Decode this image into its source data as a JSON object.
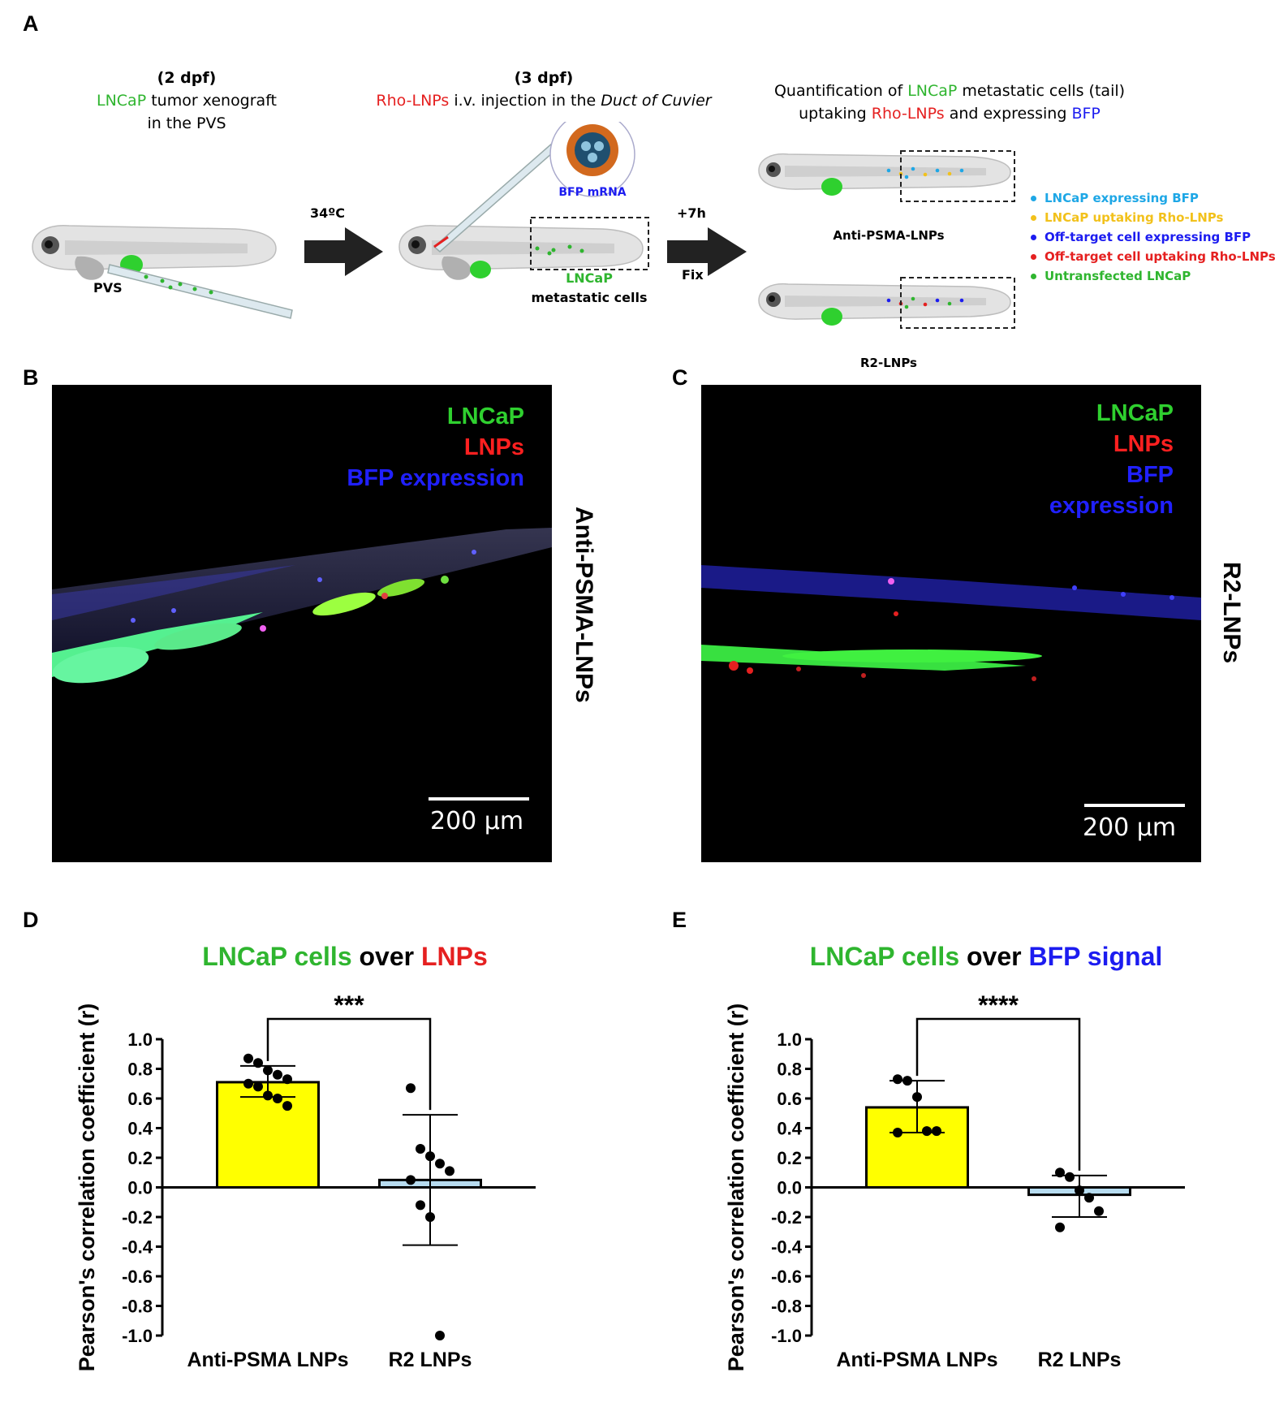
{
  "panel_letters": {
    "a": "A",
    "b": "B",
    "c": "C",
    "d": "D",
    "e": "E"
  },
  "schematic": {
    "stage1": {
      "line1": "(2 dpf)",
      "green": "LNCaP",
      "line2_rest": " tumor xenograft",
      "line3": "in the PVS",
      "pvs": "PVS"
    },
    "arrow1": "34ºC",
    "stage2": {
      "line1": "(3 dpf)",
      "red": "Rho-LNPs",
      "line2_mid": " i.v. injection  in the ",
      "italic": "Duct of Cuvier",
      "mrna": "BFP mRNA",
      "cells_green": "LNCaP",
      "cells": "metastatic cells"
    },
    "arrow2": {
      "top": "+7h",
      "bottom": "Fix"
    },
    "stage3": {
      "t1": "Quantification of ",
      "t_green": "LNCaP",
      "t2": " metastatic cells (tail)",
      "t3": "uptaking ",
      "t_red": "Rho-LNPs",
      "t4": " and expressing ",
      "t_blue": "BFP",
      "fish_top": "Anti-PSMA-LNPs",
      "fish_bottom": "R2-LNPs"
    },
    "legend": [
      {
        "label": "LNCaP expressing BFP",
        "color": "#1ea7e6"
      },
      {
        "label": "LNCaP uptaking Rho-LNPs",
        "color": "#f2c11b"
      },
      {
        "label": "Off-target cell expressing BFP",
        "color": "#1c1cf0"
      },
      {
        "label": "Off-target cell uptaking Rho-LNPs",
        "color": "#e52020"
      },
      {
        "label": "Untransfected LNCaP",
        "color": "#2fb52f"
      }
    ]
  },
  "micro_b": {
    "lnc": "LNCaP",
    "lnp": "LNPs",
    "bfp": "BFP expression",
    "scale": "200 µm",
    "side": "Anti-PSMA-LNPs"
  },
  "micro_c": {
    "lnc": "LNCaP",
    "lnp": "LNPs",
    "bfp1": "BFP",
    "bfp2": "expression",
    "scale": "200 µm",
    "side": "R2-LNPs"
  },
  "chart_d_title": {
    "green": "LNCaP cells",
    "mid": " over ",
    "colored": "LNPs",
    "colored_color": "#e52020"
  },
  "chart_e_title": {
    "green": "LNCaP cells",
    "mid": " over ",
    "colored": "BFP signal",
    "colored_color": "#1c1cf0"
  },
  "chart_data": [
    {
      "type": "bar",
      "title": "LNCaP cells over LNPs",
      "ylabel": "Pearson's correlation coefficient (r)",
      "categories": [
        "Anti-PSMA LNPs",
        "R2 LNPs"
      ],
      "values": [
        0.71,
        0.05
      ],
      "error_low": [
        0.61,
        -0.39
      ],
      "error_high": [
        0.82,
        0.49
      ],
      "bar_colors": [
        "#ffff00",
        "#b7dcf0"
      ],
      "points": [
        [
          0.87,
          0.84,
          0.79,
          0.76,
          0.73,
          0.7,
          0.68,
          0.62,
          0.6,
          0.55
        ],
        [
          0.67,
          0.26,
          0.21,
          0.16,
          0.11,
          0.05,
          -0.12,
          -0.2,
          -1.0
        ]
      ],
      "ylim": [
        -1.0,
        1.0
      ],
      "yticks": [
        "1.0",
        "0.8",
        "0.6",
        "0.4",
        "0.2",
        "0.0",
        "-0.2",
        "-0.4",
        "-0.6",
        "-0.8",
        "-1.0"
      ],
      "significance": "***"
    },
    {
      "type": "bar",
      "title": "LNCaP cells over BFP signal",
      "ylabel": "Pearson's correlation coefficient (r)",
      "categories": [
        "Anti-PSMA LNPs",
        "R2 LNPs"
      ],
      "values": [
        0.54,
        -0.05
      ],
      "error_low": [
        0.37,
        -0.2
      ],
      "error_high": [
        0.72,
        0.08
      ],
      "bar_colors": [
        "#ffff00",
        "#b7dcf0"
      ],
      "points": [
        [
          0.73,
          0.72,
          0.61,
          0.38,
          0.38,
          0.37
        ],
        [
          0.1,
          0.07,
          -0.02,
          -0.07,
          -0.16,
          -0.27
        ]
      ],
      "ylim": [
        -1.0,
        1.0
      ],
      "yticks": [
        "1.0",
        "0.8",
        "0.6",
        "0.4",
        "0.2",
        "0.0",
        "-0.2",
        "-0.4",
        "-0.6",
        "-0.8",
        "-1.0"
      ],
      "significance": "****"
    }
  ]
}
